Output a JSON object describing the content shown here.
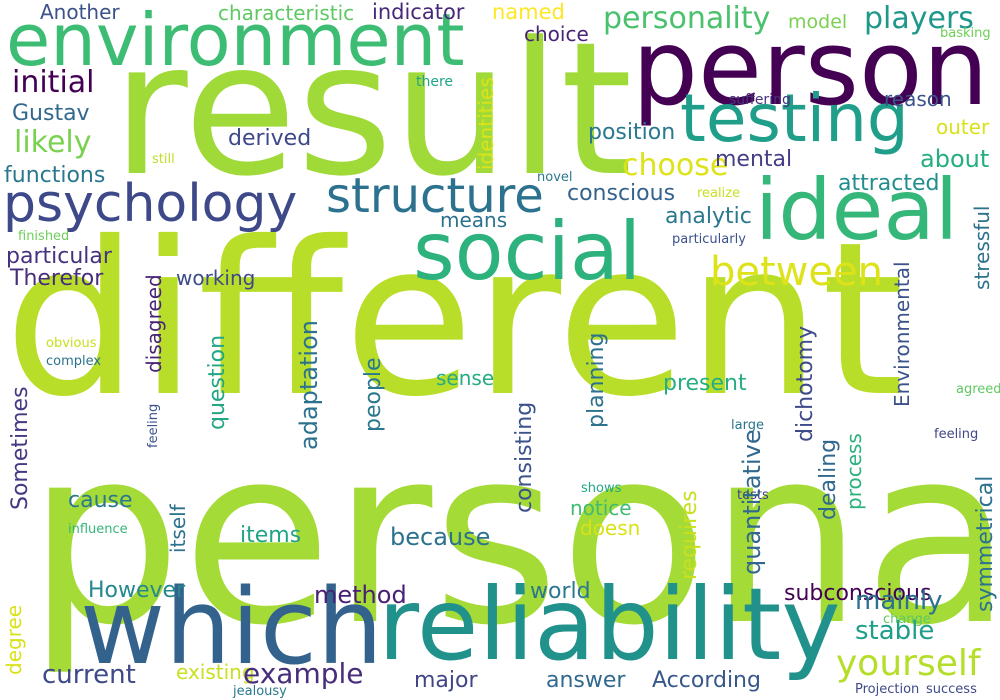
{
  "words": [
    {
      "text": "persona",
      "color": "#a5db36"
    },
    {
      "text": "different",
      "color": "#b8de29"
    },
    {
      "text": "result",
      "color": "#a0da39"
    },
    {
      "text": "person",
      "color": "#440154"
    },
    {
      "text": "environment",
      "color": "#3dbc74"
    },
    {
      "text": "which",
      "color": "#33638d"
    },
    {
      "text": "reliability",
      "color": "#21918c"
    },
    {
      "text": "ideal",
      "color": "#35b779"
    },
    {
      "text": "social",
      "color": "#2db27d"
    },
    {
      "text": "testing",
      "color": "#1f9e89"
    },
    {
      "text": "psychology",
      "color": "#3e4989"
    },
    {
      "text": "structure",
      "color": "#2c728e"
    },
    {
      "text": "between",
      "color": "#dde318"
    },
    {
      "text": "yourself",
      "color": "#b5de2b"
    },
    {
      "text": "personality",
      "color": "#4ac16d"
    },
    {
      "text": "players",
      "color": "#1f988b"
    },
    {
      "text": "Another",
      "color": "#3b528b"
    },
    {
      "text": "characteristic",
      "color": "#5ec962"
    },
    {
      "text": "indicator",
      "color": "#482878"
    },
    {
      "text": "named",
      "color": "#fde725"
    },
    {
      "text": "choice",
      "color": "#482475"
    },
    {
      "text": "model",
      "color": "#7ad151"
    },
    {
      "text": "basking",
      "color": "#6ece58"
    },
    {
      "text": "initial",
      "color": "#440154"
    },
    {
      "text": "Gustav",
      "color": "#31688e"
    },
    {
      "text": "likely",
      "color": "#7ad151"
    },
    {
      "text": "derived",
      "color": "#3e4989"
    },
    {
      "text": "functions",
      "color": "#2a788e"
    },
    {
      "text": "particular",
      "color": "#46327e"
    },
    {
      "text": "Therefor",
      "color": "#472d7b"
    },
    {
      "text": "there",
      "color": "#20a486"
    },
    {
      "text": "still",
      "color": "#bddf26"
    },
    {
      "text": "finished",
      "color": "#6ece58"
    },
    {
      "text": "reason",
      "color": "#3b528b"
    },
    {
      "text": "suffering",
      "color": "#46327e"
    },
    {
      "text": "outer",
      "color": "#d8e219"
    },
    {
      "text": "position",
      "color": "#2a788e"
    },
    {
      "text": "choose",
      "color": "#dde318"
    },
    {
      "text": "mental",
      "color": "#433e85"
    },
    {
      "text": "about",
      "color": "#26ad81"
    },
    {
      "text": "attracted",
      "color": "#228d8d"
    },
    {
      "text": "novel",
      "color": "#2a788e"
    },
    {
      "text": "realize",
      "color": "#c8e020"
    },
    {
      "text": "conscious",
      "color": "#33638d"
    },
    {
      "text": "means",
      "color": "#2c728e"
    },
    {
      "text": "analytic",
      "color": "#2a788e"
    },
    {
      "text": "particularly",
      "color": "#3b528b"
    },
    {
      "text": "working",
      "color": "#2c728e"
    },
    {
      "text": "sense",
      "color": "#3e4a89"
    },
    {
      "text": "present",
      "color": "#25ac82"
    },
    {
      "text": "obvious",
      "color": "#26ad81"
    },
    {
      "text": "complex",
      "color": "#c8e020"
    },
    {
      "text": "agreed",
      "color": "#2c728e"
    },
    {
      "text": "large",
      "color": "#5ec962"
    },
    {
      "text": "feeling",
      "color": "#3b528b"
    },
    {
      "text": "cause",
      "color": "#2c728e"
    },
    {
      "text": "influence",
      "color": "#404688"
    },
    {
      "text": "items",
      "color": "#2a788e"
    },
    {
      "text": "because",
      "color": "#35b779"
    },
    {
      "text": "notice",
      "color": "#20a486"
    },
    {
      "text": "doesn",
      "color": "#2c728e"
    },
    {
      "text": "shows",
      "color": "#3fbc73"
    },
    {
      "text": "tests",
      "color": "#d8e219"
    },
    {
      "text": "However",
      "color": "#22a884"
    },
    {
      "text": "method",
      "color": "#433e85"
    },
    {
      "text": "world",
      "color": "#23898e"
    },
    {
      "text": "subconscious",
      "color": "#482173"
    },
    {
      "text": "mainly",
      "color": "#2a788e"
    },
    {
      "text": "stable",
      "color": "#440154"
    },
    {
      "text": "change",
      "color": "#2c728e"
    },
    {
      "text": "current",
      "color": "#1f9e89"
    },
    {
      "text": "existing",
      "color": "#5ec962"
    },
    {
      "text": "example",
      "color": "#3e4a89"
    },
    {
      "text": "major",
      "color": "#c8e020"
    },
    {
      "text": "answer",
      "color": "#472d7b"
    },
    {
      "text": "According",
      "color": "#414487"
    },
    {
      "text": "jealousy",
      "color": "#31688e"
    },
    {
      "text": "Projection",
      "color": "#38588c"
    },
    {
      "text": "success",
      "color": "#2a788e"
    },
    {
      "text": "disagreed",
      "color": "#3e4a89"
    },
    {
      "text": "question",
      "color": "#3e4989"
    },
    {
      "text": "adaptation",
      "color": "#482475"
    },
    {
      "text": "people",
      "color": "#22a785"
    },
    {
      "text": "consisting",
      "color": "#2c728e"
    },
    {
      "text": "planning",
      "color": "#2a788e"
    },
    {
      "text": "dichotomy",
      "color": "#3b528b"
    },
    {
      "text": "dealing",
      "color": "#2c728e"
    },
    {
      "text": "process",
      "color": "#3e4a89"
    },
    {
      "text": "Environmental",
      "color": "#31688e"
    },
    {
      "text": "stressful",
      "color": "#2db27d"
    },
    {
      "text": "requires",
      "color": "#3b528b"
    },
    {
      "text": "quantitative",
      "color": "#c8e020"
    },
    {
      "text": "itself",
      "color": "#31688e"
    },
    {
      "text": "Sometimes",
      "color": "#2c728e"
    },
    {
      "text": "degree",
      "color": "#443983"
    },
    {
      "text": "symmetrical",
      "color": "#d8e219"
    },
    {
      "text": "identities",
      "color": "#2c728e"
    },
    {
      "text": "analyses",
      "color": "#dde318"
    }
  ]
}
